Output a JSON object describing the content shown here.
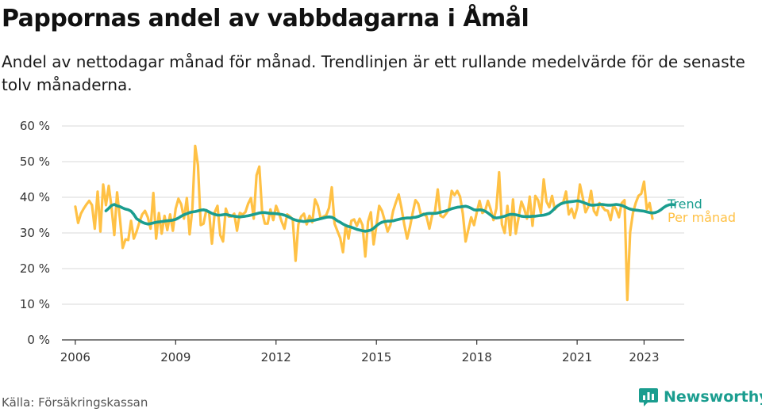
{
  "header": {
    "title": "Pappornas andel av vabbdagarna i Åmål",
    "subtitle": "Andel av nettodagar månad för månad. Trendlinjen är ett rullande medelvärde för de senaste tolv månaderna."
  },
  "footer": {
    "source": "Källa: Försäkringskassan",
    "brand": "Newsworthy",
    "brand_icon": "bar-chart-speech-bubble-icon"
  },
  "colors": {
    "monthly": "#ffc145",
    "trend": "#1a9d8f",
    "grid": "#d9d9d9",
    "axis": "#333333"
  },
  "chart_data": {
    "type": "line",
    "title": "Pappornas andel av vabbdagarna i Åmål",
    "xlabel": "",
    "ylabel": "",
    "ylim": [
      0,
      60
    ],
    "yticks": [
      0,
      10,
      20,
      30,
      40,
      50,
      60
    ],
    "ytick_labels": [
      "0 %",
      "10 %",
      "20 %",
      "30 %",
      "40 %",
      "50 %",
      "60 %"
    ],
    "xticks": [
      2006,
      2009,
      2012,
      2015,
      2018,
      2021,
      2023
    ],
    "xtick_labels": [
      "2006",
      "2009",
      "2012",
      "2015",
      "2018",
      "2021",
      "2023"
    ],
    "xlim": [
      2005.6,
      2024.2
    ],
    "grid": true,
    "legend": "right-end-labels",
    "series": [
      {
        "name": "Trend",
        "x_start": "2006-12",
        "values": [
          36.2,
          36.9,
          37.7,
          38.0,
          37.6,
          37.4,
          37.0,
          36.7,
          36.5,
          36.1,
          35.2,
          34.0,
          33.5,
          33.0,
          32.7,
          32.5,
          32.6,
          32.8,
          33.0,
          33.1,
          33.2,
          33.3,
          33.4,
          33.5,
          33.6,
          33.8,
          34.2,
          34.7,
          35.1,
          35.4,
          35.7,
          35.9,
          36.0,
          36.2,
          36.4,
          36.5,
          36.3,
          35.9,
          35.5,
          35.2,
          35.0,
          35.0,
          35.1,
          35.2,
          35.0,
          34.8,
          34.7,
          34.6,
          34.5,
          34.6,
          34.7,
          34.8,
          35.0,
          35.2,
          35.4,
          35.6,
          35.7,
          35.7,
          35.6,
          35.5,
          35.5,
          35.4,
          35.3,
          35.2,
          35.0,
          34.7,
          34.3,
          33.9,
          33.6,
          33.4,
          33.3,
          33.2,
          33.3,
          33.4,
          33.5,
          33.6,
          33.8,
          34.0,
          34.2,
          34.4,
          34.5,
          34.4,
          34.0,
          33.4,
          33.0,
          32.5,
          32.1,
          31.8,
          31.6,
          31.3,
          31.0,
          30.8,
          30.6,
          30.5,
          30.6,
          30.8,
          31.3,
          32.0,
          32.6,
          33.0,
          33.2,
          33.3,
          33.3,
          33.4,
          33.6,
          33.8,
          34.0,
          34.1,
          34.2,
          34.2,
          34.3,
          34.4,
          34.6,
          34.9,
          35.2,
          35.4,
          35.5,
          35.5,
          35.5,
          35.6,
          35.8,
          36.0,
          36.2,
          36.5,
          36.8,
          37.0,
          37.2,
          37.3,
          37.4,
          37.5,
          37.3,
          36.9,
          36.5,
          36.4,
          36.5,
          36.4,
          36.1,
          35.6,
          35.0,
          34.4,
          34.2,
          34.3,
          34.5,
          34.7,
          35.0,
          35.2,
          35.2,
          35.1,
          34.9,
          34.7,
          34.6,
          34.6,
          34.6,
          34.7,
          34.7,
          34.8,
          34.9,
          35.0,
          35.2,
          35.5,
          36.1,
          36.9,
          37.6,
          38.1,
          38.4,
          38.6,
          38.7,
          38.8,
          38.9,
          39.0,
          38.9,
          38.6,
          38.3,
          38.0,
          37.8,
          37.8,
          37.9,
          38.0,
          38.0,
          37.9,
          37.8,
          37.8,
          37.9,
          38.0,
          37.9,
          37.7,
          37.4,
          37.0,
          36.7,
          36.5,
          36.4,
          36.3,
          36.2,
          36.1,
          35.9,
          35.7,
          35.6,
          35.7,
          36.0,
          36.5,
          37.1,
          37.6,
          37.9,
          38.0,
          37.9
        ]
      },
      {
        "name": "Per månad",
        "x_start": "2006-01",
        "values": [
          37.4,
          32.8,
          35.4,
          36.8,
          38.0,
          39.0,
          37.8,
          31.2,
          41.6,
          30.4,
          43.6,
          37.8,
          43.2,
          37.2,
          29.4,
          41.4,
          34.0,
          25.8,
          28.2,
          28.0,
          33.4,
          28.4,
          30.4,
          33.0,
          35.2,
          36.2,
          34.4,
          31.2,
          41.2,
          28.4,
          35.6,
          29.8,
          34.8,
          30.8,
          35.2,
          30.6,
          36.8,
          39.6,
          38.0,
          34.0,
          39.8,
          29.6,
          37.0,
          54.4,
          49.0,
          32.2,
          32.6,
          36.4,
          35.6,
          27.0,
          35.8,
          37.6,
          29.4,
          27.6,
          36.8,
          34.6,
          34.6,
          35.4,
          30.6,
          35.6,
          35.2,
          35.8,
          38.2,
          39.8,
          34.0,
          46.2,
          48.6,
          36.0,
          32.6,
          32.6,
          36.6,
          33.6,
          37.6,
          35.6,
          33.2,
          31.2,
          35.2,
          34.6,
          33.8,
          22.2,
          32.4,
          34.6,
          35.4,
          32.4,
          34.8,
          33.0,
          39.4,
          37.6,
          34.0,
          34.6,
          35.0,
          37.0,
          42.8,
          32.6,
          30.6,
          28.6,
          24.6,
          32.2,
          28.4,
          33.4,
          33.8,
          32.0,
          34.0,
          32.2,
          23.4,
          33.2,
          35.8,
          26.8,
          32.0,
          37.6,
          36.2,
          33.4,
          30.4,
          32.2,
          36.2,
          38.6,
          40.8,
          37.0,
          32.4,
          28.4,
          31.6,
          35.6,
          39.2,
          38.2,
          35.0,
          35.4,
          34.6,
          31.2,
          35.0,
          36.0,
          42.2,
          34.8,
          34.4,
          35.4,
          36.6,
          41.8,
          40.6,
          41.8,
          40.2,
          35.4,
          27.6,
          31.0,
          34.4,
          32.2,
          35.8,
          39.0,
          35.6,
          36.2,
          39.0,
          36.6,
          33.6,
          36.8,
          47.0,
          32.4,
          30.0,
          37.6,
          29.4,
          39.4,
          29.8,
          34.4,
          38.8,
          36.8,
          34.0,
          40.2,
          32.0,
          40.4,
          39.2,
          35.6,
          45.0,
          38.8,
          37.2,
          40.4,
          36.6,
          37.6,
          38.2,
          38.6,
          41.6,
          35.2,
          36.8,
          34.2,
          37.0,
          43.6,
          40.0,
          35.8,
          37.4,
          41.8,
          36.2,
          35.0,
          38.4,
          37.4,
          36.4,
          36.2,
          33.6,
          37.8,
          36.6,
          34.4,
          38.4,
          39.2,
          11.2,
          30.2,
          35.6,
          38.4,
          40.4,
          41.0,
          44.4,
          36.6,
          38.4,
          34.0
        ]
      }
    ]
  }
}
